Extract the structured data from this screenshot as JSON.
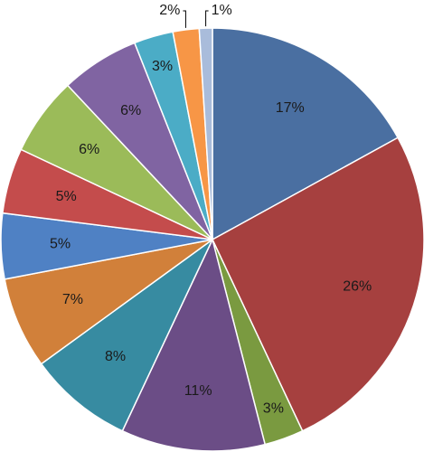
{
  "chart_data": {
    "type": "pie",
    "title": "",
    "legend": "none",
    "start_angle_deg": 0,
    "direction": "clockwise",
    "slices": [
      {
        "value": 17,
        "label": "17%",
        "color": "#4a6fa1"
      },
      {
        "value": 26,
        "label": "26%",
        "color": "#a6403f"
      },
      {
        "value": 3,
        "label": "3%",
        "color": "#7a9a40"
      },
      {
        "value": 11,
        "label": "11%",
        "color": "#6b4d86"
      },
      {
        "value": 8,
        "label": "8%",
        "color": "#378ba1"
      },
      {
        "value": 7,
        "label": "7%",
        "color": "#d1803a"
      },
      {
        "value": 5,
        "label": "5%",
        "color": "#4f81c4"
      },
      {
        "value": 5,
        "label": "5%",
        "color": "#c44c4c"
      },
      {
        "value": 6,
        "label": "6%",
        "color": "#9bbb59"
      },
      {
        "value": 6,
        "label": "6%",
        "color": "#8064a2"
      },
      {
        "value": 3,
        "label": "3%",
        "color": "#4bacc6"
      },
      {
        "value": 2,
        "label": "2%",
        "color": "#f79646"
      },
      {
        "value": 1,
        "label": "1%",
        "color": "#a9bcdb"
      }
    ]
  }
}
